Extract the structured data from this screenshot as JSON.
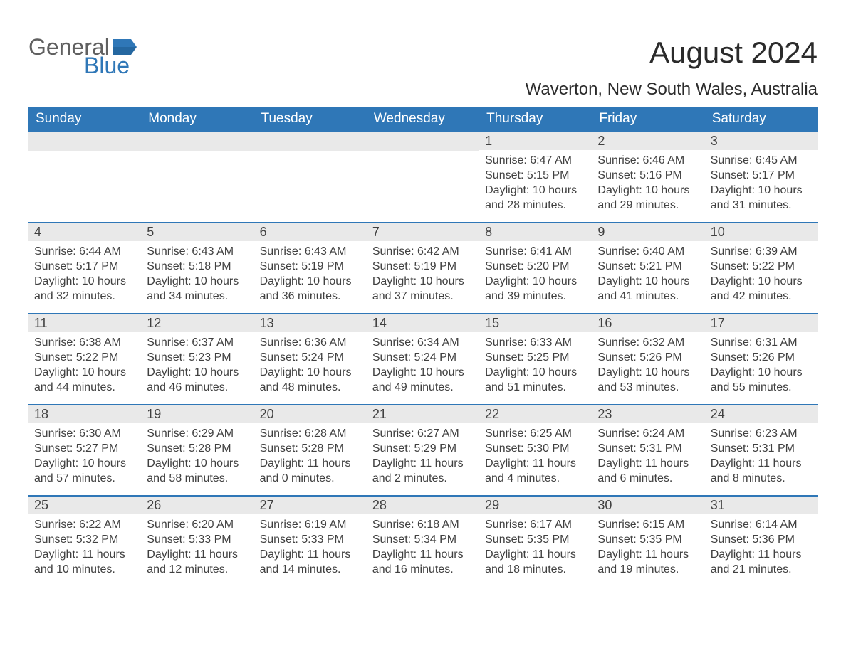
{
  "logo": {
    "text1": "General",
    "text2": "Blue",
    "flag_color": "#2f77b7"
  },
  "title": "August 2024",
  "location": "Waverton, New South Wales, Australia",
  "styling": {
    "header_bg": "#2f77b7",
    "header_fg": "#ffffff",
    "daynum_bg": "#e9e9e9",
    "text_color": "#404040",
    "week_border": "#2f77b7",
    "page_bg": "#ffffff",
    "title_fontsize": 42,
    "location_fontsize": 24,
    "dayhdr_fontsize": 19,
    "body_fontsize": 16
  },
  "day_headers": [
    "Sunday",
    "Monday",
    "Tuesday",
    "Wednesday",
    "Thursday",
    "Friday",
    "Saturday"
  ],
  "weeks": [
    [
      null,
      null,
      null,
      null,
      {
        "n": "1",
        "sunrise": "6:47 AM",
        "sunset": "5:15 PM",
        "daylight": "10 hours and 28 minutes."
      },
      {
        "n": "2",
        "sunrise": "6:46 AM",
        "sunset": "5:16 PM",
        "daylight": "10 hours and 29 minutes."
      },
      {
        "n": "3",
        "sunrise": "6:45 AM",
        "sunset": "5:17 PM",
        "daylight": "10 hours and 31 minutes."
      }
    ],
    [
      {
        "n": "4",
        "sunrise": "6:44 AM",
        "sunset": "5:17 PM",
        "daylight": "10 hours and 32 minutes."
      },
      {
        "n": "5",
        "sunrise": "6:43 AM",
        "sunset": "5:18 PM",
        "daylight": "10 hours and 34 minutes."
      },
      {
        "n": "6",
        "sunrise": "6:43 AM",
        "sunset": "5:19 PM",
        "daylight": "10 hours and 36 minutes."
      },
      {
        "n": "7",
        "sunrise": "6:42 AM",
        "sunset": "5:19 PM",
        "daylight": "10 hours and 37 minutes."
      },
      {
        "n": "8",
        "sunrise": "6:41 AM",
        "sunset": "5:20 PM",
        "daylight": "10 hours and 39 minutes."
      },
      {
        "n": "9",
        "sunrise": "6:40 AM",
        "sunset": "5:21 PM",
        "daylight": "10 hours and 41 minutes."
      },
      {
        "n": "10",
        "sunrise": "6:39 AM",
        "sunset": "5:22 PM",
        "daylight": "10 hours and 42 minutes."
      }
    ],
    [
      {
        "n": "11",
        "sunrise": "6:38 AM",
        "sunset": "5:22 PM",
        "daylight": "10 hours and 44 minutes."
      },
      {
        "n": "12",
        "sunrise": "6:37 AM",
        "sunset": "5:23 PM",
        "daylight": "10 hours and 46 minutes."
      },
      {
        "n": "13",
        "sunrise": "6:36 AM",
        "sunset": "5:24 PM",
        "daylight": "10 hours and 48 minutes."
      },
      {
        "n": "14",
        "sunrise": "6:34 AM",
        "sunset": "5:24 PM",
        "daylight": "10 hours and 49 minutes."
      },
      {
        "n": "15",
        "sunrise": "6:33 AM",
        "sunset": "5:25 PM",
        "daylight": "10 hours and 51 minutes."
      },
      {
        "n": "16",
        "sunrise": "6:32 AM",
        "sunset": "5:26 PM",
        "daylight": "10 hours and 53 minutes."
      },
      {
        "n": "17",
        "sunrise": "6:31 AM",
        "sunset": "5:26 PM",
        "daylight": "10 hours and 55 minutes."
      }
    ],
    [
      {
        "n": "18",
        "sunrise": "6:30 AM",
        "sunset": "5:27 PM",
        "daylight": "10 hours and 57 minutes."
      },
      {
        "n": "19",
        "sunrise": "6:29 AM",
        "sunset": "5:28 PM",
        "daylight": "10 hours and 58 minutes."
      },
      {
        "n": "20",
        "sunrise": "6:28 AM",
        "sunset": "5:28 PM",
        "daylight": "11 hours and 0 minutes."
      },
      {
        "n": "21",
        "sunrise": "6:27 AM",
        "sunset": "5:29 PM",
        "daylight": "11 hours and 2 minutes."
      },
      {
        "n": "22",
        "sunrise": "6:25 AM",
        "sunset": "5:30 PM",
        "daylight": "11 hours and 4 minutes."
      },
      {
        "n": "23",
        "sunrise": "6:24 AM",
        "sunset": "5:31 PM",
        "daylight": "11 hours and 6 minutes."
      },
      {
        "n": "24",
        "sunrise": "6:23 AM",
        "sunset": "5:31 PM",
        "daylight": "11 hours and 8 minutes."
      }
    ],
    [
      {
        "n": "25",
        "sunrise": "6:22 AM",
        "sunset": "5:32 PM",
        "daylight": "11 hours and 10 minutes."
      },
      {
        "n": "26",
        "sunrise": "6:20 AM",
        "sunset": "5:33 PM",
        "daylight": "11 hours and 12 minutes."
      },
      {
        "n": "27",
        "sunrise": "6:19 AM",
        "sunset": "5:33 PM",
        "daylight": "11 hours and 14 minutes."
      },
      {
        "n": "28",
        "sunrise": "6:18 AM",
        "sunset": "5:34 PM",
        "daylight": "11 hours and 16 minutes."
      },
      {
        "n": "29",
        "sunrise": "6:17 AM",
        "sunset": "5:35 PM",
        "daylight": "11 hours and 18 minutes."
      },
      {
        "n": "30",
        "sunrise": "6:15 AM",
        "sunset": "5:35 PM",
        "daylight": "11 hours and 19 minutes."
      },
      {
        "n": "31",
        "sunrise": "6:14 AM",
        "sunset": "5:36 PM",
        "daylight": "11 hours and 21 minutes."
      }
    ]
  ],
  "labels": {
    "sunrise": "Sunrise: ",
    "sunset": "Sunset: ",
    "daylight": "Daylight: "
  }
}
